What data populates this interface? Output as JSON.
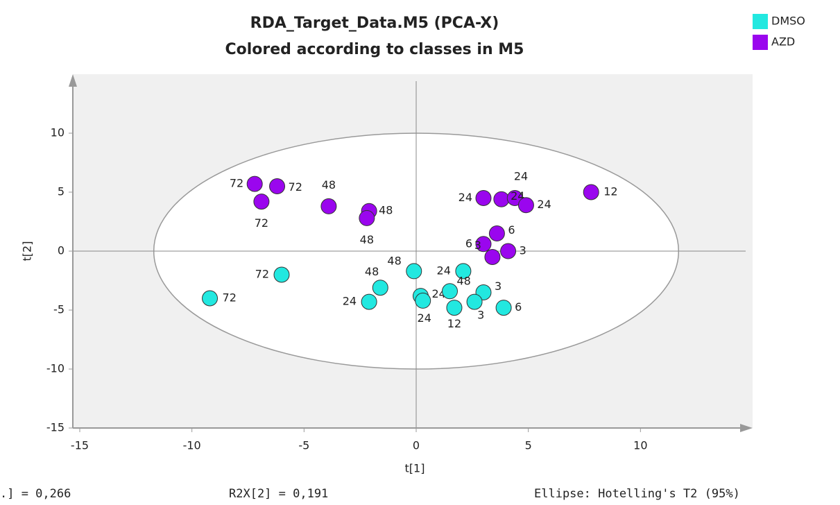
{
  "chart_data": {
    "type": "scatter",
    "title": "RDA_Target_Data.M5 (PCA-X)",
    "subtitle": "Colored according to classes in M5",
    "x_label": "t[1]",
    "y_label": "t[2]",
    "xlim": [
      -15,
      15
    ],
    "ylim": [
      -15,
      15
    ],
    "xticks": [
      -15,
      -10,
      -5,
      0,
      5,
      10
    ],
    "yticks": [
      -15,
      -10,
      -5,
      0,
      5,
      10
    ],
    "ellipse_radii": [
      11.7,
      10
    ],
    "series": [
      {
        "name": "DMSO",
        "color": "#22e8e0",
        "x": [
          -9.2,
          -6.0,
          -0.1,
          2.1,
          -1.6,
          -2.1,
          0.2,
          0.3,
          1.5,
          3.0,
          1.7,
          2.6,
          3.9
        ],
        "y": [
          -4.0,
          -2.0,
          -1.7,
          -1.7,
          -3.1,
          -4.3,
          -3.8,
          -4.2,
          -3.4,
          -3.5,
          -4.8,
          -4.3,
          -4.8
        ],
        "labels": [
          "72",
          "72",
          "48",
          "24",
          "48",
          "24",
          "24",
          "24",
          "48",
          "3",
          "12",
          "3",
          "6"
        ]
      },
      {
        "name": "AZD",
        "color": "#9a06ee",
        "x": [
          -7.2,
          -6.2,
          -6.9,
          -3.9,
          -2.1,
          -2.2,
          3.0,
          3.8,
          4.4,
          4.9,
          7.8,
          3.6,
          3.0,
          4.1,
          3.4
        ],
        "y": [
          5.7,
          5.5,
          4.2,
          3.8,
          3.4,
          2.8,
          4.5,
          4.4,
          4.5,
          3.9,
          5.0,
          1.5,
          0.6,
          0.0,
          -0.5
        ],
        "labels": [
          "72",
          "72",
          "72",
          "48",
          "48",
          "48",
          "24",
          "24",
          "24",
          "24",
          "12",
          "6",
          "6",
          "3",
          "3"
        ]
      }
    ],
    "footer": [
      ".] = 0,266",
      "R2X[2] = 0,191",
      "Ellipse: Hotelling's T2 (95%)"
    ]
  }
}
